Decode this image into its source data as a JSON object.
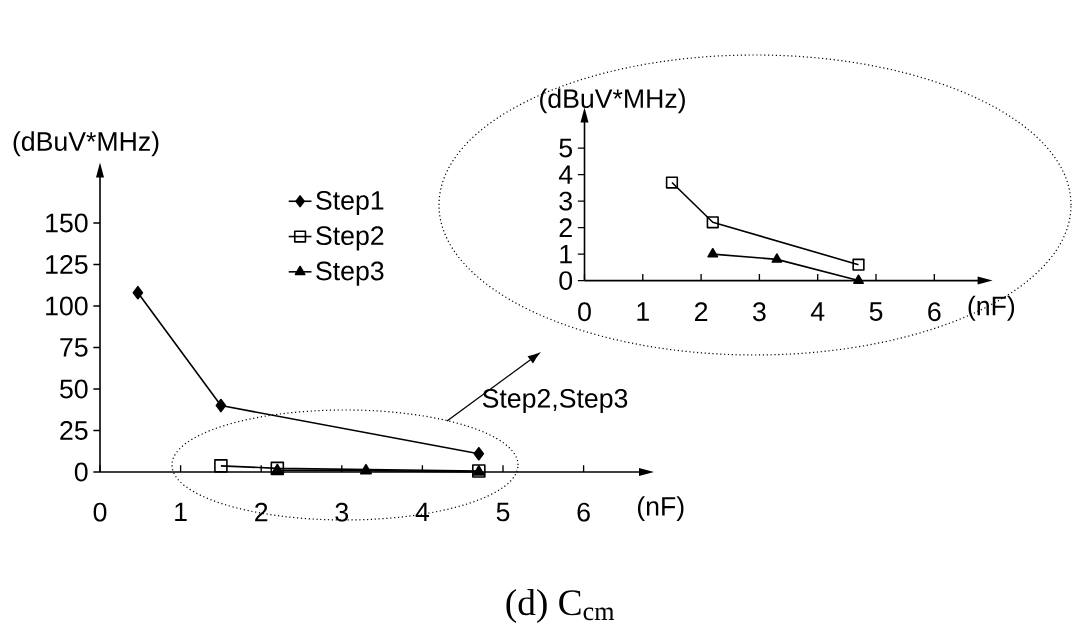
{
  "chart_data": [
    {
      "type": "line",
      "ylabel": "(dBuV*MHz)",
      "xlabel": "(nF)",
      "xlim": [
        0,
        6.7
      ],
      "ylim": [
        0,
        178
      ],
      "xticks": [
        0,
        1,
        2,
        3,
        4,
        5,
        6
      ],
      "yticks": [
        0,
        25,
        50,
        75,
        100,
        125,
        150
      ],
      "legend": "top",
      "grid": false,
      "line_style": "solid",
      "annotations": [
        "Step2,Step3",
        "(d)  C$_{cm}$"
      ],
      "series": [
        {
          "name": "Step1",
          "color": "#000000",
          "marker": "diamond",
          "x": [
            0.47,
            1.5,
            4.7
          ],
          "values": [
            108,
            40,
            11
          ]
        },
        {
          "name": "Step2",
          "color": "#000000",
          "marker": "square",
          "x": [
            1.5,
            2.2,
            4.7
          ],
          "values": [
            3.7,
            2.2,
            0.6
          ]
        },
        {
          "name": "Step3",
          "color": "#000000",
          "marker": "triangle",
          "x": [
            2.2,
            3.3,
            4.7
          ],
          "values": [
            1.0,
            0.8,
            0
          ]
        }
      ]
    },
    {
      "type": "line",
      "ylabel": "(dBuV*MHz)",
      "xlabel": "(nF)",
      "xlim": [
        0,
        6.76
      ],
      "ylim": [
        0,
        6
      ],
      "xticks": [
        0,
        1,
        2,
        3,
        4,
        5,
        6
      ],
      "yticks": [
        0,
        1,
        2,
        3,
        4,
        5
      ],
      "grid": false,
      "line_style": "solid",
      "series": [
        {
          "color": "#000000",
          "marker": "square",
          "x": [
            1.5,
            2.2,
            4.7
          ],
          "values": [
            3.7,
            2.2,
            0.6
          ]
        },
        {
          "color": "#000000",
          "marker": "triangle",
          "x": [
            2.2,
            3.3,
            4.7
          ],
          "values": [
            1.0,
            0.8,
            0
          ]
        }
      ]
    }
  ]
}
